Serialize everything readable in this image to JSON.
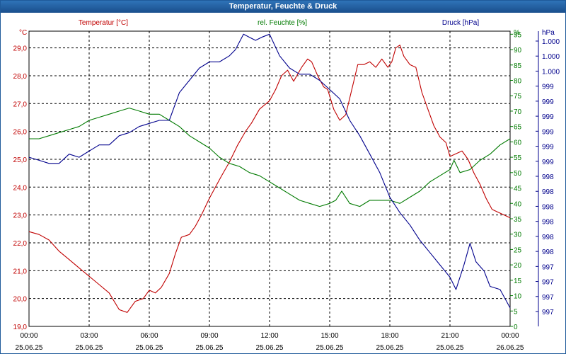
{
  "window": {
    "title": "Temperatur, Feuchte & Druck"
  },
  "chart_data": {
    "type": "line",
    "title": "Temperatur, Feuchte & Druck",
    "x": [
      "00:00",
      "03:00",
      "06:00",
      "09:00",
      "12:00",
      "15:00",
      "18:00",
      "21:00",
      "00:00"
    ],
    "x_dates": [
      "25.06.25",
      "25.06.25",
      "25.06.25",
      "25.06.25",
      "25.06.25",
      "25.06.25",
      "25.06.25",
      "25.06.25",
      "26.06.25"
    ],
    "x_hours_range": [
      0,
      24
    ],
    "grid": true,
    "axes": {
      "temperature": {
        "label": "Temperatur [°C]",
        "unit": "°C",
        "range": [
          19.0,
          29.6
        ],
        "ticks": [
          "19,0",
          "20,0",
          "21,0",
          "22,0",
          "23,0",
          "24,0",
          "25,0",
          "26,0",
          "27,0",
          "28,0",
          "29,0"
        ],
        "color": "#c00000"
      },
      "humidity": {
        "label": "rel. Feuchte [%]",
        "unit": "%",
        "range": [
          0,
          96
        ],
        "ticks": [
          "0",
          "5",
          "10",
          "15",
          "20",
          "25",
          "30",
          "35",
          "40",
          "45",
          "50",
          "55",
          "60",
          "65",
          "70",
          "75",
          "80",
          "85",
          "90",
          "95"
        ],
        "color": "#007a00"
      },
      "pressure": {
        "label": "Druck [hPa]",
        "unit": "hPa",
        "ticks": [
          "997",
          "997",
          "997",
          "997",
          "998",
          "998",
          "998",
          "998",
          "998",
          "998",
          "999",
          "999",
          "999",
          "999",
          "999",
          "999",
          "1.000",
          "1.000",
          "1.000"
        ],
        "color": "#00008c"
      }
    },
    "series": [
      {
        "name": "Temperatur [°C]",
        "axis": "temperature",
        "points": [
          [
            0,
            22.4
          ],
          [
            0.5,
            22.3
          ],
          [
            1,
            22.1
          ],
          [
            1.5,
            21.7
          ],
          [
            2,
            21.4
          ],
          [
            2.5,
            21.1
          ],
          [
            3,
            20.8
          ],
          [
            3.5,
            20.5
          ],
          [
            4,
            20.2
          ],
          [
            4.5,
            19.6
          ],
          [
            4.9,
            19.5
          ],
          [
            5.3,
            19.9
          ],
          [
            5.7,
            20.0
          ],
          [
            6,
            20.3
          ],
          [
            6.3,
            20.2
          ],
          [
            6.6,
            20.4
          ],
          [
            7,
            20.9
          ],
          [
            7.3,
            21.6
          ],
          [
            7.6,
            22.2
          ],
          [
            8,
            22.3
          ],
          [
            8.3,
            22.6
          ],
          [
            8.6,
            23.0
          ],
          [
            9,
            23.6
          ],
          [
            9.3,
            24.0
          ],
          [
            9.6,
            24.4
          ],
          [
            10,
            24.9
          ],
          [
            10.4,
            25.5
          ],
          [
            10.8,
            26.0
          ],
          [
            11.1,
            26.3
          ],
          [
            11.5,
            26.8
          ],
          [
            12,
            27.1
          ],
          [
            12.3,
            27.5
          ],
          [
            12.6,
            28.0
          ],
          [
            12.9,
            28.2
          ],
          [
            13.2,
            27.8
          ],
          [
            13.6,
            28.3
          ],
          [
            13.9,
            28.6
          ],
          [
            14.1,
            28.5
          ],
          [
            14.4,
            28.0
          ],
          [
            14.7,
            27.6
          ],
          [
            14.9,
            27.5
          ],
          [
            15.2,
            26.8
          ],
          [
            15.5,
            26.4
          ],
          [
            15.8,
            26.6
          ],
          [
            16.1,
            27.5
          ],
          [
            16.4,
            28.4
          ],
          [
            16.7,
            28.4
          ],
          [
            17,
            28.5
          ],
          [
            17.3,
            28.3
          ],
          [
            17.6,
            28.6
          ],
          [
            17.9,
            28.3
          ],
          [
            18.1,
            28.5
          ],
          [
            18.3,
            29.0
          ],
          [
            18.5,
            29.1
          ],
          [
            18.7,
            28.7
          ],
          [
            19,
            28.4
          ],
          [
            19.3,
            28.3
          ],
          [
            19.6,
            27.4
          ],
          [
            19.9,
            26.8
          ],
          [
            20.2,
            26.2
          ],
          [
            20.5,
            25.8
          ],
          [
            20.8,
            25.6
          ],
          [
            21,
            25.1
          ],
          [
            21.3,
            25.2
          ],
          [
            21.6,
            25.3
          ],
          [
            21.9,
            25.0
          ],
          [
            22.2,
            24.5
          ],
          [
            22.5,
            24.1
          ],
          [
            22.8,
            23.6
          ],
          [
            23.1,
            23.2
          ],
          [
            23.4,
            23.1
          ],
          [
            23.7,
            23.0
          ],
          [
            24,
            22.9
          ]
        ]
      },
      {
        "name": "rel. Feuchte [%]",
        "axis": "humidity",
        "points": [
          [
            0,
            61
          ],
          [
            0.5,
            61
          ],
          [
            1,
            62
          ],
          [
            1.5,
            63
          ],
          [
            2,
            64
          ],
          [
            2.5,
            65
          ],
          [
            3,
            67
          ],
          [
            3.5,
            68
          ],
          [
            4,
            69
          ],
          [
            4.5,
            70
          ],
          [
            5,
            71
          ],
          [
            5.5,
            70
          ],
          [
            6,
            69
          ],
          [
            6.5,
            69
          ],
          [
            7,
            67
          ],
          [
            7.5,
            65
          ],
          [
            8,
            62
          ],
          [
            8.5,
            60
          ],
          [
            9,
            58
          ],
          [
            9.5,
            55
          ],
          [
            10,
            53
          ],
          [
            10.5,
            52
          ],
          [
            11,
            50
          ],
          [
            11.5,
            49
          ],
          [
            12,
            47
          ],
          [
            12.5,
            45
          ],
          [
            13,
            43
          ],
          [
            13.5,
            41
          ],
          [
            14,
            40
          ],
          [
            14.5,
            39
          ],
          [
            15,
            40
          ],
          [
            15.3,
            41
          ],
          [
            15.6,
            44
          ],
          [
            16,
            40
          ],
          [
            16.5,
            39
          ],
          [
            17,
            41
          ],
          [
            17.5,
            41
          ],
          [
            18,
            41
          ],
          [
            18.5,
            40
          ],
          [
            19,
            42
          ],
          [
            19.5,
            44
          ],
          [
            20,
            47
          ],
          [
            20.5,
            49
          ],
          [
            21,
            51
          ],
          [
            21.2,
            54
          ],
          [
            21.5,
            50
          ],
          [
            22,
            51
          ],
          [
            22.5,
            54
          ],
          [
            23,
            56
          ],
          [
            23.5,
            59
          ],
          [
            24,
            61
          ]
        ]
      },
      {
        "name": "Druck [hPa]",
        "axis": "pressure",
        "points": [
          [
            0,
            55
          ],
          [
            0.5,
            54
          ],
          [
            1,
            53
          ],
          [
            1.5,
            53
          ],
          [
            2,
            56
          ],
          [
            2.5,
            55
          ],
          [
            3,
            57
          ],
          [
            3.5,
            59
          ],
          [
            4,
            59
          ],
          [
            4.5,
            62
          ],
          [
            5,
            63
          ],
          [
            5.5,
            65
          ],
          [
            6,
            66
          ],
          [
            6.5,
            67
          ],
          [
            7,
            67
          ],
          [
            7.5,
            76
          ],
          [
            8,
            80
          ],
          [
            8.5,
            84
          ],
          [
            9,
            86
          ],
          [
            9.5,
            86
          ],
          [
            10,
            88
          ],
          [
            10.3,
            90
          ],
          [
            10.7,
            95
          ],
          [
            11,
            94
          ],
          [
            11.3,
            93
          ],
          [
            11.6,
            94
          ],
          [
            12,
            95
          ],
          [
            12.5,
            88
          ],
          [
            13,
            84
          ],
          [
            13.5,
            82
          ],
          [
            14,
            82
          ],
          [
            14.5,
            80
          ],
          [
            15,
            77
          ],
          [
            15.5,
            74
          ],
          [
            16,
            67
          ],
          [
            16.5,
            62
          ],
          [
            17,
            56
          ],
          [
            17.5,
            50
          ],
          [
            18,
            42
          ],
          [
            18.5,
            37
          ],
          [
            19,
            33
          ],
          [
            19.5,
            28
          ],
          [
            20,
            24
          ],
          [
            20.5,
            20
          ],
          [
            21,
            16
          ],
          [
            21.3,
            12
          ],
          [
            21.7,
            20
          ],
          [
            22,
            27
          ],
          [
            22.3,
            21
          ],
          [
            22.7,
            18
          ],
          [
            23,
            13
          ],
          [
            23.5,
            12
          ],
          [
            24,
            6
          ]
        ]
      }
    ]
  }
}
